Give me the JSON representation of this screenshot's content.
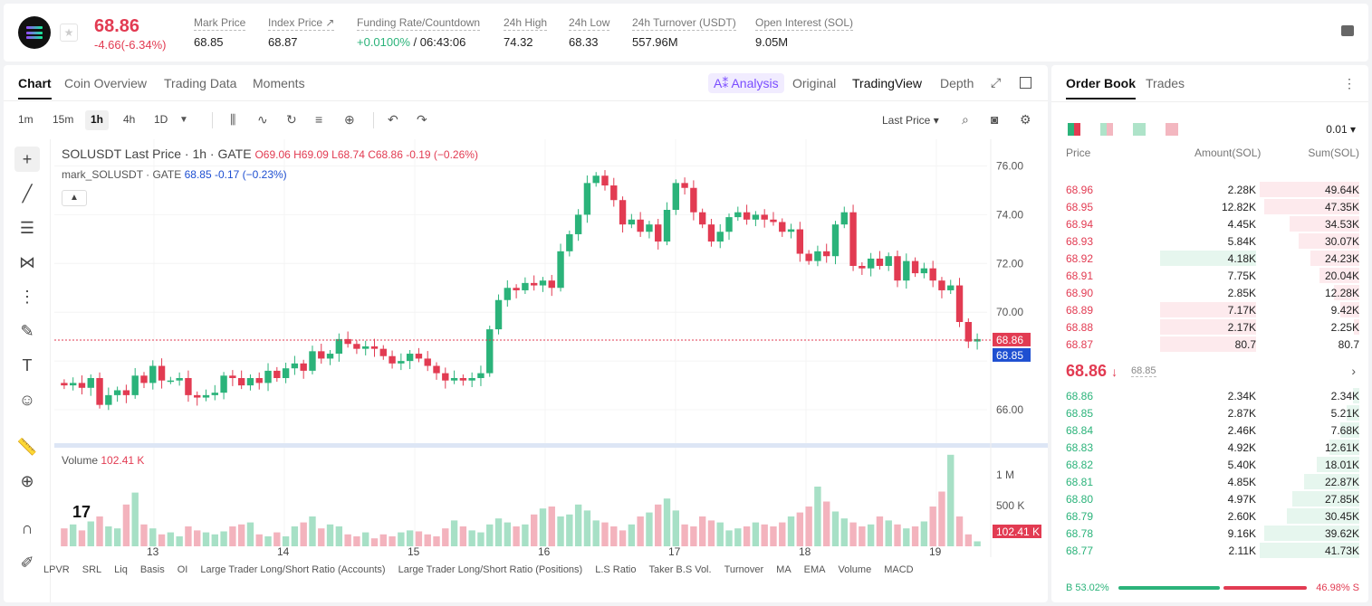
{
  "header": {
    "symbol_logo": "solana-logo",
    "last_price": "68.86",
    "change": "-4.66(-6.34%)",
    "stats": [
      {
        "label": "Mark Price",
        "value": "68.85"
      },
      {
        "label": "Index Price ↗",
        "value": "68.87"
      },
      {
        "label": "Funding Rate/Countdown",
        "value_green": "+0.0100%",
        "value": " / 06:43:06"
      },
      {
        "label": "24h High",
        "value": "74.32"
      },
      {
        "label": "24h Low",
        "value": "68.33"
      },
      {
        "label": "24h Turnover (USDT)",
        "value": "557.96M"
      },
      {
        "label": "Open Interest (SOL)",
        "value": "9.05M"
      }
    ]
  },
  "chart_tabs": {
    "tabs": [
      "Chart",
      "Coin Overview",
      "Trading Data",
      "Moments"
    ],
    "ai": "A⁑ Analysis",
    "views": [
      "Original",
      "TradingView",
      "Depth"
    ]
  },
  "toolbar": {
    "timeframes": [
      "1m",
      "15m",
      "1h",
      "4h",
      "1D"
    ],
    "price_select": "Last Price"
  },
  "chart": {
    "legend_main": "SOLUSDT Last Price · 1h · GATE",
    "legend_ohlc": "O69.06  H69.09  L68.74  C68.86  -0.19 (−0.26%)",
    "legend_mark_name": "mark_SOLUSDT · GATE",
    "legend_mark_val": "68.85  -0.17 (−0.23%)",
    "volume_label": "Volume",
    "volume_value": "102.41 K",
    "price_ticks": [
      "76.00",
      "74.00",
      "72.00",
      "70.00",
      "66.00"
    ],
    "last_price_tag": "68.86",
    "mark_price_tag": "68.85",
    "volume_ticks": [
      "1 M",
      "500 K"
    ],
    "volume_tag": "102.41 K",
    "date_ticks": [
      "13",
      "14",
      "15",
      "16",
      "17",
      "18",
      "19"
    ],
    "indicators": [
      "LPVR",
      "SRL",
      "Liq",
      "Basis",
      "OI",
      "Large Trader Long/Short Ratio (Accounts)",
      "Large Trader Long/Short Ratio (Positions)",
      "L.S Ratio",
      "Taker B.S Vol.",
      "Turnover",
      "MA",
      "EMA",
      "Volume",
      "MACD"
    ]
  },
  "chart_data": {
    "type": "candlestick",
    "x_ticks": [
      "13",
      "14",
      "15",
      "16",
      "17",
      "18",
      "19"
    ],
    "y_range": [
      65,
      76.5
    ],
    "close_path": [
      67.0,
      67.1,
      66.9,
      67.3,
      66.2,
      66.6,
      66.8,
      66.6,
      67.4,
      67.1,
      67.8,
      67.2,
      67.2,
      67.3,
      66.6,
      66.5,
      66.6,
      66.7,
      67.4,
      67.3,
      67.0,
      67.3,
      67.1,
      67.6,
      67.3,
      67.7,
      67.9,
      67.6,
      68.4,
      68.1,
      68.3,
      68.9,
      68.7,
      68.5,
      68.6,
      68.5,
      68.2,
      67.9,
      68.0,
      68.3,
      68.1,
      67.8,
      67.5,
      67.2,
      67.3,
      67.2,
      67.3,
      67.5,
      69.3,
      70.5,
      71.0,
      70.9,
      71.2,
      71.1,
      71.3,
      71.0,
      72.5,
      73.2,
      74.0,
      75.3,
      75.6,
      75.2,
      74.6,
      73.6,
      73.8,
      73.3,
      73.6,
      72.9,
      74.2,
      75.3,
      75.1,
      74.1,
      73.6,
      72.9,
      73.3,
      73.9,
      74.1,
      73.8,
      74.0,
      73.8,
      73.7,
      73.3,
      73.4,
      72.4,
      72.1,
      72.5,
      72.3,
      73.6,
      74.1,
      71.9,
      71.8,
      72.2,
      71.9,
      72.3,
      71.3,
      72.1,
      71.6,
      71.8,
      71.3,
      70.9,
      71.1,
      69.6,
      68.8,
      68.9
    ],
    "volume_path": [
      0.18,
      0.22,
      0.16,
      0.25,
      0.3,
      0.2,
      0.18,
      0.42,
      0.54,
      0.22,
      0.18,
      0.12,
      0.14,
      0.1,
      0.2,
      0.16,
      0.14,
      0.12,
      0.15,
      0.2,
      0.22,
      0.24,
      0.12,
      0.1,
      0.14,
      0.1,
      0.2,
      0.24,
      0.3,
      0.18,
      0.22,
      0.2,
      0.12,
      0.1,
      0.14,
      0.08,
      0.12,
      0.1,
      0.14,
      0.16,
      0.15,
      0.12,
      0.1,
      0.18,
      0.26,
      0.2,
      0.16,
      0.14,
      0.22,
      0.28,
      0.24,
      0.2,
      0.22,
      0.32,
      0.38,
      0.4,
      0.3,
      0.32,
      0.42,
      0.36,
      0.26,
      0.24,
      0.2,
      0.16,
      0.22,
      0.3,
      0.34,
      0.42,
      0.48,
      0.36,
      0.22,
      0.2,
      0.3,
      0.26,
      0.24,
      0.16,
      0.18,
      0.2,
      0.24,
      0.22,
      0.2,
      0.24,
      0.3,
      0.34,
      0.4,
      0.6,
      0.45,
      0.35,
      0.28,
      0.24,
      0.2,
      0.22,
      0.3,
      0.26,
      0.22,
      0.18,
      0.2,
      0.25,
      0.4,
      0.55,
      0.92,
      0.3,
      0.12,
      0.05
    ]
  },
  "orderbook": {
    "tabs": [
      "Order Book",
      "Trades"
    ],
    "precision": "0.01",
    "headers": [
      "Price",
      "Amount(SOL)",
      "Sum(SOL)"
    ],
    "asks": [
      {
        "price": "68.96",
        "amount": "2.28K",
        "sum": "49.64K",
        "depth": 1.0,
        "amt_depth": 0
      },
      {
        "price": "68.95",
        "amount": "12.82K",
        "sum": "47.35K",
        "depth": 0.95,
        "amt_depth": 0
      },
      {
        "price": "68.94",
        "amount": "4.45K",
        "sum": "34.53K",
        "depth": 0.7,
        "amt_depth": 0
      },
      {
        "price": "68.93",
        "amount": "5.84K",
        "sum": "30.07K",
        "depth": 0.61,
        "amt_depth": 0
      },
      {
        "price": "68.92",
        "amount": "4.18K",
        "sum": "24.23K",
        "depth": 0.49,
        "amt_depth": 0.95
      },
      {
        "price": "68.91",
        "amount": "7.75K",
        "sum": "20.04K",
        "depth": 0.4,
        "amt_depth": 0
      },
      {
        "price": "68.90",
        "amount": "2.85K",
        "sum": "12.28K",
        "depth": 0.25,
        "amt_depth": 0
      },
      {
        "price": "68.89",
        "amount": "7.17K",
        "sum": "9.42K",
        "depth": 0.19,
        "amt_depth": 0.95
      },
      {
        "price": "68.88",
        "amount": "2.17K",
        "sum": "2.25K",
        "depth": 0.05,
        "amt_depth": 0.95
      },
      {
        "price": "68.87",
        "amount": "80.7",
        "sum": "80.7",
        "depth": 0.0,
        "amt_depth": 0.95
      }
    ],
    "mid_price": "68.86",
    "mid_arrow": "↓",
    "mid_mark": "68.85",
    "bids": [
      {
        "price": "68.86",
        "amount": "2.34K",
        "sum": "2.34K",
        "depth": 0.06
      },
      {
        "price": "68.85",
        "amount": "2.87K",
        "sum": "5.21K",
        "depth": 0.13
      },
      {
        "price": "68.84",
        "amount": "2.46K",
        "sum": "7.68K",
        "depth": 0.19
      },
      {
        "price": "68.83",
        "amount": "4.92K",
        "sum": "12.61K",
        "depth": 0.3
      },
      {
        "price": "68.82",
        "amount": "5.40K",
        "sum": "18.01K",
        "depth": 0.43
      },
      {
        "price": "68.81",
        "amount": "4.85K",
        "sum": "22.87K",
        "depth": 0.55
      },
      {
        "price": "68.80",
        "amount": "4.97K",
        "sum": "27.85K",
        "depth": 0.67
      },
      {
        "price": "68.79",
        "amount": "2.60K",
        "sum": "30.45K",
        "depth": 0.73
      },
      {
        "price": "68.78",
        "amount": "9.16K",
        "sum": "39.62K",
        "depth": 0.95
      },
      {
        "price": "68.77",
        "amount": "2.11K",
        "sum": "41.73K",
        "depth": 1.0
      }
    ],
    "buy_ratio": "B 53.02%",
    "sell_ratio": "46.98% S"
  },
  "colors": {
    "up": "#2bb37a",
    "down": "#e23b52",
    "mark": "#1e4fd1"
  }
}
